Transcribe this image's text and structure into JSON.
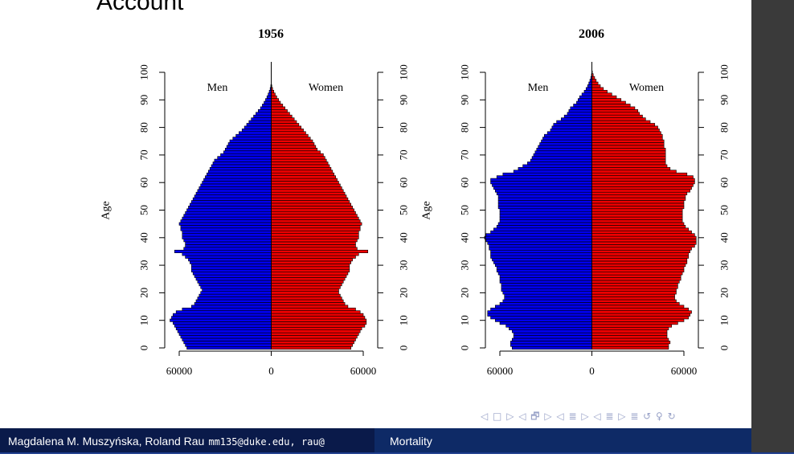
{
  "slide": {
    "frame_title": "Account"
  },
  "footer": {
    "authors": "Magdalena M. Muszyńska, Roland Rau",
    "email": "mm135@duke.edu, rau@",
    "title": "Mortality"
  },
  "nav": {
    "symbols": "◁ □ ▷ ◁ 🗗 ▷ ◁ ≣ ▷ ◁ ≣ ▷   ≣   ↺ ♀ ↻"
  },
  "chart_data": [
    {
      "type": "population-pyramid",
      "title": "1956",
      "ylabel": "Age",
      "left_label": "Men",
      "right_label": "Women",
      "left_color": "#0000ee",
      "right_color": "#ee0000",
      "age_ticks": [
        0,
        10,
        20,
        30,
        40,
        50,
        60,
        70,
        80,
        90,
        100
      ],
      "x_tick_labels": [
        "60000",
        "0",
        "60000"
      ],
      "x_tick_values": [
        -60000,
        0,
        60000
      ],
      "xlim": [
        -70000,
        70000
      ],
      "ylim": [
        0,
        100
      ],
      "ages": [
        0,
        1,
        2,
        3,
        4,
        5,
        6,
        7,
        8,
        9,
        10,
        11,
        12,
        13,
        14,
        15,
        16,
        17,
        18,
        19,
        20,
        21,
        22,
        23,
        24,
        25,
        26,
        27,
        28,
        29,
        30,
        31,
        32,
        33,
        34,
        35,
        36,
        37,
        38,
        39,
        40,
        41,
        42,
        43,
        44,
        45,
        46,
        47,
        48,
        49,
        50,
        51,
        52,
        53,
        54,
        55,
        56,
        57,
        58,
        59,
        60,
        61,
        62,
        63,
        64,
        65,
        66,
        67,
        68,
        69,
        70,
        71,
        72,
        73,
        74,
        75,
        76,
        77,
        78,
        79,
        80,
        81,
        82,
        83,
        84,
        85,
        86,
        87,
        88,
        89,
        90,
        91,
        92,
        93,
        94,
        95
      ],
      "men": [
        55000,
        56000,
        57000,
        58000,
        59000,
        60000,
        61000,
        62000,
        63000,
        64000,
        66000,
        65000,
        64000,
        62000,
        58000,
        52000,
        50000,
        49000,
        48000,
        47000,
        46000,
        45000,
        46000,
        47000,
        48000,
        49000,
        50000,
        51000,
        52000,
        52000,
        52000,
        53000,
        54000,
        56000,
        58000,
        63000,
        57000,
        56000,
        56000,
        57000,
        58000,
        58000,
        58000,
        59000,
        59000,
        60000,
        59000,
        58000,
        57000,
        56000,
        55000,
        54000,
        53000,
        52000,
        51000,
        50000,
        49000,
        48000,
        47000,
        46000,
        45000,
        44000,
        43000,
        42000,
        41000,
        40000,
        39000,
        38000,
        37000,
        35000,
        33000,
        31000,
        30000,
        29000,
        28000,
        27000,
        25000,
        23000,
        21000,
        19000,
        17500,
        16000,
        14500,
        13000,
        11500,
        10000,
        8500,
        7000,
        5800,
        4700,
        3700,
        2800,
        2000,
        1300,
        700,
        300
      ],
      "women": [
        52000,
        53000,
        54000,
        55000,
        56000,
        57000,
        58000,
        59000,
        61000,
        62000,
        62000,
        61000,
        60000,
        58000,
        55000,
        50000,
        48000,
        47000,
        46000,
        45000,
        44000,
        44000,
        45000,
        46000,
        47000,
        48000,
        49000,
        50000,
        51000,
        51000,
        51000,
        52000,
        53000,
        55000,
        57000,
        63000,
        56000,
        55000,
        55000,
        56000,
        57000,
        57000,
        57000,
        58000,
        58000,
        59000,
        58000,
        57000,
        56000,
        55000,
        54000,
        53000,
        52000,
        51000,
        50000,
        49000,
        48000,
        47000,
        46000,
        45000,
        44000,
        43000,
        42000,
        41000,
        40000,
        39000,
        38000,
        37000,
        36000,
        35000,
        34000,
        32000,
        30000,
        29000,
        28000,
        27000,
        25500,
        24000,
        22500,
        21000,
        19500,
        18000,
        16500,
        15000,
        13500,
        12000,
        10500,
        9000,
        7500,
        6000,
        4800,
        3600,
        2600,
        1700,
        900,
        400
      ]
    },
    {
      "type": "population-pyramid",
      "title": "2006",
      "ylabel": "Age",
      "left_label": "Men",
      "right_label": "Women",
      "left_color": "#0000ee",
      "right_color": "#ee0000",
      "age_ticks": [
        0,
        10,
        20,
        30,
        40,
        50,
        60,
        70,
        80,
        90,
        100
      ],
      "x_tick_labels": [
        "60000",
        "0",
        "60000"
      ],
      "x_tick_values": [
        -60000,
        0,
        60000
      ],
      "xlim": [
        -70000,
        70000
      ],
      "ylim": [
        0,
        100
      ],
      "ages": [
        0,
        1,
        2,
        3,
        4,
        5,
        6,
        7,
        8,
        9,
        10,
        11,
        12,
        13,
        14,
        15,
        16,
        17,
        18,
        19,
        20,
        21,
        22,
        23,
        24,
        25,
        26,
        27,
        28,
        29,
        30,
        31,
        32,
        33,
        34,
        35,
        36,
        37,
        38,
        39,
        40,
        41,
        42,
        43,
        44,
        45,
        46,
        47,
        48,
        49,
        50,
        51,
        52,
        53,
        54,
        55,
        56,
        57,
        58,
        59,
        60,
        61,
        62,
        63,
        64,
        65,
        66,
        67,
        68,
        69,
        70,
        71,
        72,
        73,
        74,
        75,
        76,
        77,
        78,
        79,
        80,
        81,
        82,
        83,
        84,
        85,
        86,
        87,
        88,
        89,
        90,
        91,
        92,
        93,
        94,
        95,
        96,
        97,
        98,
        99,
        100
      ],
      "men": [
        52000,
        53000,
        53000,
        52000,
        51000,
        51000,
        52000,
        54000,
        56000,
        60000,
        63000,
        66000,
        68000,
        68000,
        66000,
        63000,
        60000,
        58000,
        57000,
        57000,
        58000,
        59000,
        59000,
        59000,
        60000,
        60000,
        60000,
        61000,
        62000,
        62000,
        63000,
        64000,
        65000,
        66000,
        66000,
        66000,
        67000,
        67000,
        68000,
        69000,
        70000,
        69000,
        66000,
        64000,
        62000,
        61000,
        60000,
        60000,
        60000,
        60000,
        60000,
        61000,
        61000,
        61000,
        61000,
        61000,
        62000,
        63000,
        64000,
        65000,
        66000,
        66000,
        62000,
        58000,
        51000,
        48000,
        45000,
        42000,
        40000,
        39000,
        38000,
        37000,
        36000,
        35000,
        34000,
        33000,
        32000,
        31000,
        29000,
        27000,
        26000,
        25000,
        23000,
        20000,
        18000,
        16000,
        15000,
        14000,
        12000,
        10000,
        9000,
        8000,
        6500,
        5000,
        3800,
        2800,
        2000,
        1300,
        700,
        300,
        100
      ],
      "women": [
        50000,
        50000,
        51000,
        50000,
        49000,
        49000,
        49000,
        50000,
        52000,
        56000,
        60000,
        63000,
        64000,
        65000,
        63000,
        60000,
        57000,
        55000,
        54000,
        54000,
        55000,
        55000,
        56000,
        56000,
        57000,
        58000,
        58000,
        59000,
        60000,
        60000,
        61000,
        62000,
        62000,
        63000,
        63000,
        64000,
        65000,
        67000,
        68000,
        68000,
        68000,
        67000,
        65000,
        63000,
        61000,
        60000,
        59000,
        59000,
        59000,
        59000,
        59000,
        60000,
        60000,
        60000,
        61000,
        61000,
        62000,
        64000,
        65000,
        66000,
        67000,
        67000,
        66000,
        62000,
        55000,
        51000,
        49000,
        48000,
        48000,
        48000,
        48000,
        48000,
        48000,
        47000,
        47000,
        47000,
        46000,
        46000,
        45000,
        44000,
        43000,
        41000,
        38000,
        35000,
        33000,
        31000,
        30000,
        28000,
        25000,
        22000,
        19000,
        16000,
        13000,
        10000,
        7500,
        5500,
        4000,
        2800,
        1800,
        900,
        300
      ]
    }
  ]
}
